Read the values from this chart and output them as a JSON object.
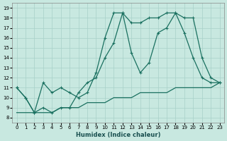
{
  "xlabel": "Humidex (Indice chaleur)",
  "bg_color": "#c8e8e0",
  "grid_color": "#a8d0c8",
  "line_color": "#1a7060",
  "xlim": [
    -0.5,
    23.5
  ],
  "ylim": [
    7.5,
    19.5
  ],
  "xticks": [
    0,
    1,
    2,
    3,
    4,
    5,
    6,
    7,
    8,
    9,
    10,
    11,
    12,
    13,
    14,
    15,
    16,
    17,
    18,
    19,
    20,
    21,
    22,
    23
  ],
  "yticks": [
    8,
    9,
    10,
    11,
    12,
    13,
    14,
    15,
    16,
    17,
    18,
    19
  ],
  "line1_x": [
    0,
    1,
    2,
    3,
    4,
    5,
    6,
    7,
    8,
    9,
    10,
    11,
    12,
    13,
    14,
    15,
    16,
    17,
    18,
    19,
    20,
    21,
    22,
    23
  ],
  "line1_y": [
    11,
    10,
    8.5,
    11.5,
    10.5,
    11,
    10.5,
    10,
    10.5,
    12.5,
    16,
    18.5,
    18.5,
    17.5,
    17.5,
    18,
    18,
    18.5,
    18.5,
    18,
    18,
    14,
    12,
    11.5
  ],
  "line2_x": [
    0,
    1,
    2,
    3,
    4,
    5,
    6,
    7,
    8,
    9,
    10,
    11,
    12,
    13,
    14,
    15,
    16,
    17,
    18,
    19,
    20,
    21,
    22,
    23
  ],
  "line2_y": [
    11,
    10,
    8.5,
    9,
    8.5,
    9,
    9,
    10.5,
    11.5,
    12,
    14,
    15.5,
    18.5,
    14.5,
    12.5,
    13.5,
    16.5,
    17,
    18.5,
    16.5,
    14,
    12,
    11.5,
    11.5
  ],
  "line3_x": [
    0,
    1,
    2,
    3,
    4,
    5,
    6,
    7,
    8,
    9,
    10,
    11,
    12,
    13,
    14,
    15,
    16,
    17,
    18,
    19,
    20,
    21,
    22,
    23
  ],
  "line3_y": [
    8.5,
    8.5,
    8.5,
    8.5,
    8.5,
    9,
    9,
    9,
    9.5,
    9.5,
    9.5,
    10,
    10,
    10,
    10.5,
    10.5,
    10.5,
    10.5,
    11,
    11,
    11,
    11,
    11,
    11.5
  ]
}
